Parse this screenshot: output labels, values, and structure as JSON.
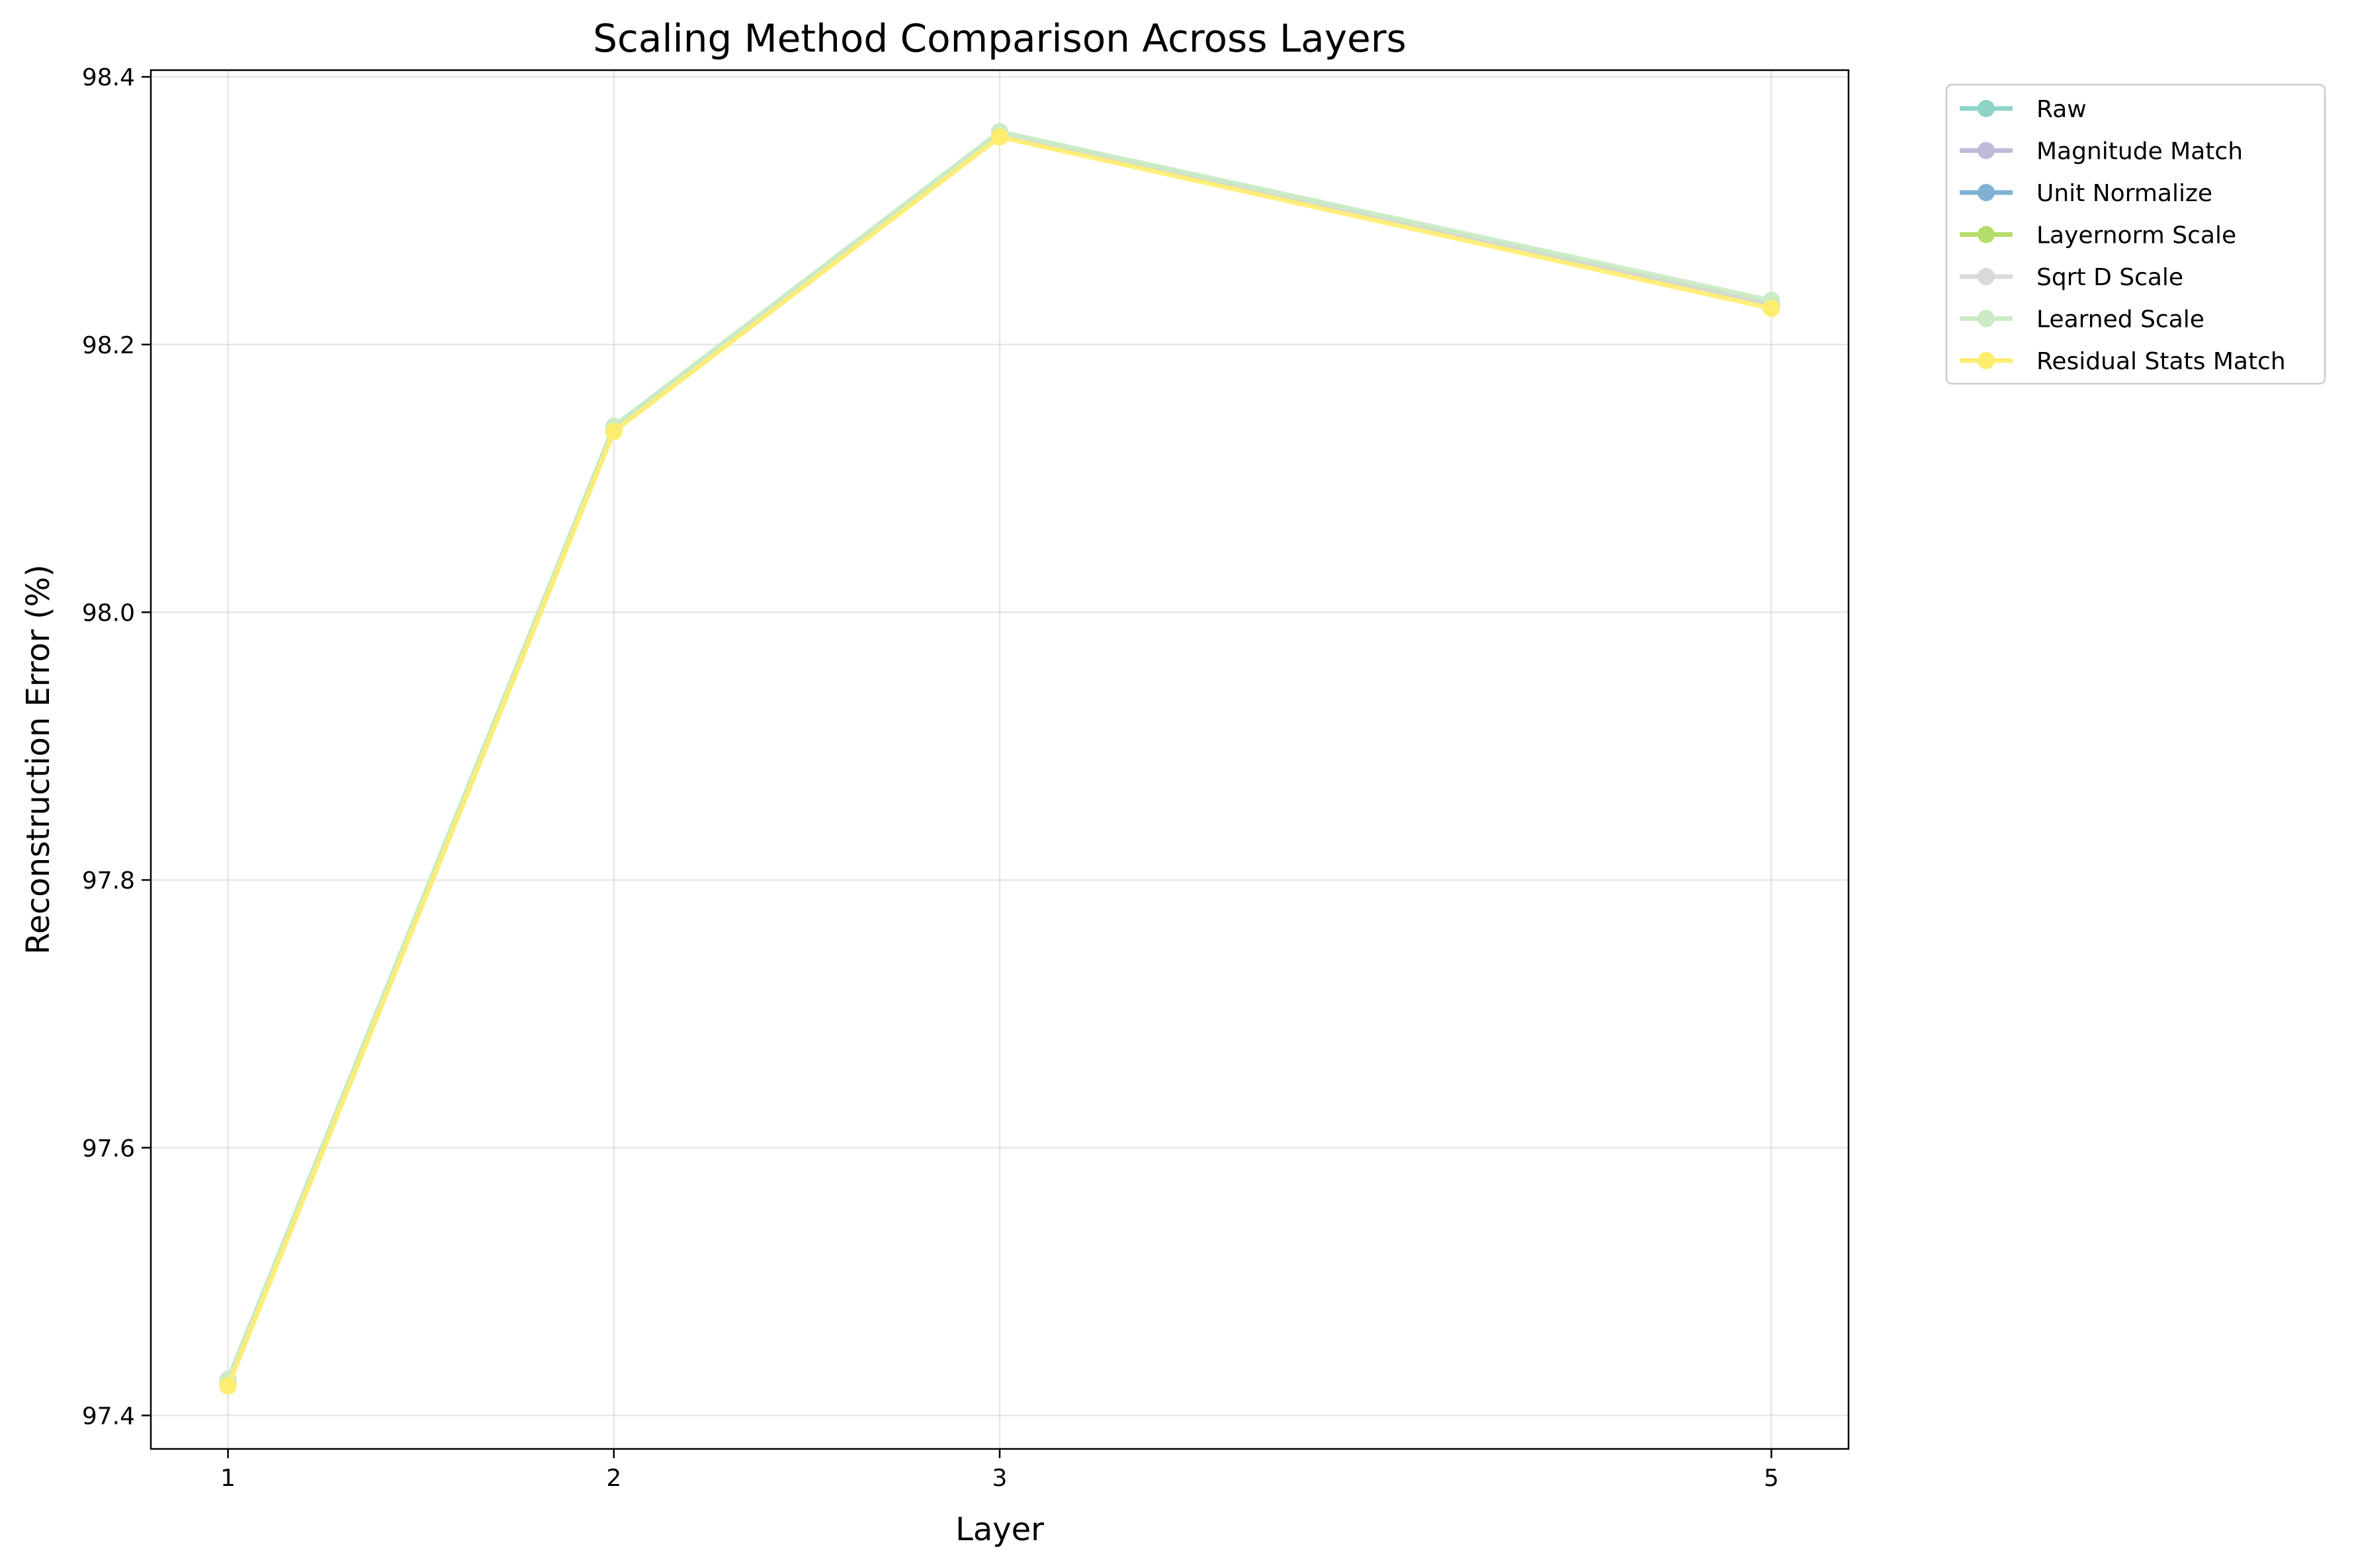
{
  "chart_data": {
    "type": "line",
    "title": "Scaling Method Comparison Across Layers",
    "xlabel": "Layer",
    "ylabel": "Reconstruction Error (%)",
    "x": [
      1,
      2,
      3,
      5
    ],
    "x_ticks": [
      "1",
      "2",
      "3",
      "5"
    ],
    "y_ticks": [
      "97.4",
      "97.6",
      "97.8",
      "98.0",
      "98.2",
      "98.4"
    ],
    "xlim": [
      0.8,
      5.2
    ],
    "ylim": [
      97.375,
      98.405
    ],
    "grid": true,
    "legend_position": "outside upper right",
    "series": [
      {
        "name": "Raw",
        "color": "#8dd3c7",
        "values": [
          97.426,
          98.138,
          98.358,
          98.231
        ]
      },
      {
        "name": "Magnitude Match",
        "color": "#bebada",
        "values": [
          97.424,
          98.136,
          98.357,
          98.23
        ]
      },
      {
        "name": "Unit Normalize",
        "color": "#80b1d3",
        "values": [
          97.424,
          98.136,
          98.357,
          98.23
        ]
      },
      {
        "name": "Layernorm Scale",
        "color": "#b3de69",
        "values": [
          97.424,
          98.136,
          98.357,
          98.23
        ]
      },
      {
        "name": "Sqrt D Scale",
        "color": "#d9d9d9",
        "values": [
          97.424,
          98.136,
          98.357,
          98.23
        ]
      },
      {
        "name": "Learned Scale",
        "color": "#ccebc5",
        "values": [
          97.427,
          98.139,
          98.359,
          98.233
        ]
      },
      {
        "name": "Residual Stats Match",
        "color": "#ffed6f",
        "values": [
          97.422,
          98.135,
          98.355,
          98.227
        ]
      }
    ]
  }
}
